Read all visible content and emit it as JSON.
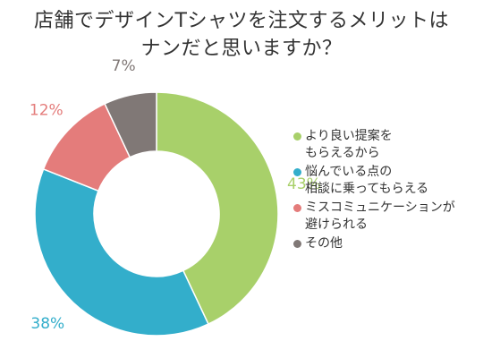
{
  "title": {
    "line1": "店舗でデザインTシャツを注文するメリットは",
    "line2": "ナンだと思いますか？"
  },
  "chart_data": {
    "type": "pie",
    "variant": "donut",
    "title": "店舗でデザインTシャツを注文するメリットは ナンだと思いますか？",
    "legend_position": "right",
    "series": [
      {
        "name": "より良い提案をもらえるから",
        "label_lines": [
          "より良い提案を",
          "もらえるから"
        ],
        "value": 43,
        "label": "43%",
        "color": "#a8d06a"
      },
      {
        "name": "悩んでいる点の相談に乗ってもらえる",
        "label_lines": [
          "悩んでいる点の",
          "相談に乗ってもらえる"
        ],
        "value": 38,
        "label": "38%",
        "color": "#33aecb"
      },
      {
        "name": "ミスコミュニケーションが避けられる",
        "label_lines": [
          "ミスコミュニケーションが",
          "避けられる"
        ],
        "value": 12,
        "label": "12%",
        "color": "#e47c7b"
      },
      {
        "name": "その他",
        "label_lines": [
          "その他"
        ],
        "value": 7,
        "label": "7%",
        "color": "#807876"
      }
    ]
  }
}
